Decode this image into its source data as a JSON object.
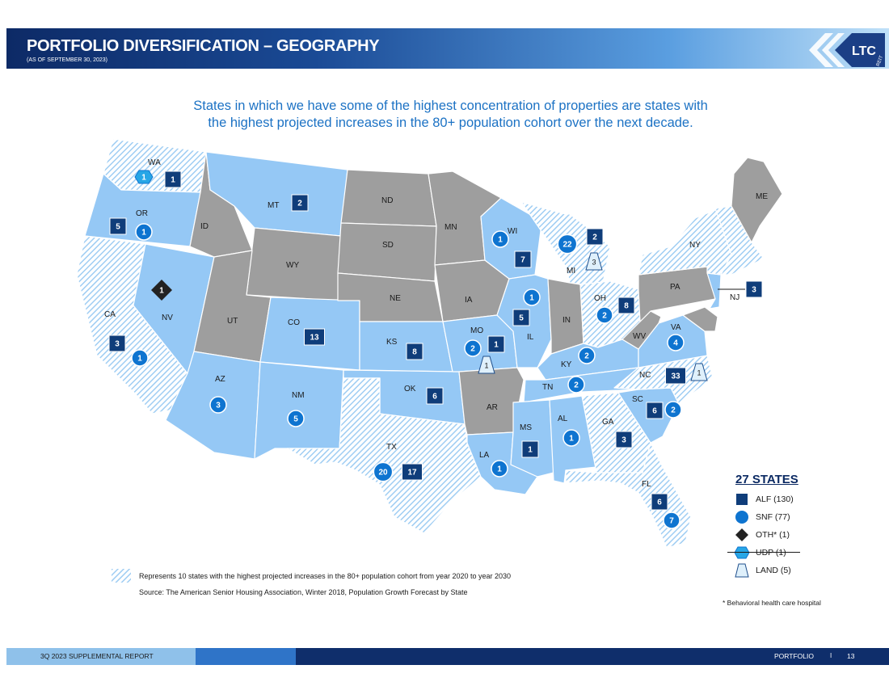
{
  "header": {
    "title": "PORTFOLIO DIVERSIFICATION – GEOGRAPHY",
    "subtitle": "(AS OF SEPTEMBER 30, 2023)",
    "logo_text": "LTC",
    "logo_sub": "REIT"
  },
  "headline": {
    "line1": "States in which we have some of the highest concentration of properties are states with",
    "line2": "the highest projected increases in the 80+ population cohort over the next decade."
  },
  "colors": {
    "gray_state": "#9e9e9e",
    "blue_state": "#95c8f5",
    "hatch": "#9fcdf3",
    "alf": "#0f3d7a",
    "snf": "#0e74d0",
    "oth": "#222222",
    "udp": "#27a6e6",
    "land": "#dff0fb"
  },
  "states": [
    {
      "code": "WA",
      "fill": "hatch"
    },
    {
      "code": "OR",
      "fill": "blue"
    },
    {
      "code": "CA",
      "fill": "hatch"
    },
    {
      "code": "NV",
      "fill": "blue"
    },
    {
      "code": "ID",
      "fill": "gray"
    },
    {
      "code": "MT",
      "fill": "blue"
    },
    {
      "code": "WY",
      "fill": "gray"
    },
    {
      "code": "UT",
      "fill": "gray"
    },
    {
      "code": "AZ",
      "fill": "blue"
    },
    {
      "code": "CO",
      "fill": "blue"
    },
    {
      "code": "NM",
      "fill": "blue"
    },
    {
      "code": "ND",
      "fill": "gray"
    },
    {
      "code": "SD",
      "fill": "gray"
    },
    {
      "code": "NE",
      "fill": "gray"
    },
    {
      "code": "KS",
      "fill": "blue"
    },
    {
      "code": "OK",
      "fill": "blue"
    },
    {
      "code": "TX",
      "fill": "hatch"
    },
    {
      "code": "MN",
      "fill": "gray"
    },
    {
      "code": "IA",
      "fill": "gray"
    },
    {
      "code": "MO",
      "fill": "blue"
    },
    {
      "code": "AR",
      "fill": "gray"
    },
    {
      "code": "LA",
      "fill": "blue"
    },
    {
      "code": "WI",
      "fill": "blue"
    },
    {
      "code": "IL",
      "fill": "blue"
    },
    {
      "code": "MI",
      "fill": "hatch"
    },
    {
      "code": "IN",
      "fill": "gray"
    },
    {
      "code": "OH",
      "fill": "hatch"
    },
    {
      "code": "KY",
      "fill": "blue"
    },
    {
      "code": "TN",
      "fill": "blue"
    },
    {
      "code": "MS",
      "fill": "blue"
    },
    {
      "code": "AL",
      "fill": "blue"
    },
    {
      "code": "GA",
      "fill": "hatch"
    },
    {
      "code": "FL",
      "fill": "hatch"
    },
    {
      "code": "SC",
      "fill": "blue"
    },
    {
      "code": "NC",
      "fill": "hatch"
    },
    {
      "code": "VA",
      "fill": "blue"
    },
    {
      "code": "WV",
      "fill": "gray"
    },
    {
      "code": "PA",
      "fill": "gray"
    },
    {
      "code": "NY",
      "fill": "hatch"
    },
    {
      "code": "NJ",
      "fill": "blue"
    },
    {
      "code": "ME",
      "fill": "gray"
    }
  ],
  "markers": [
    {
      "state": "WA",
      "type": "UDP",
      "value": "1"
    },
    {
      "state": "WA",
      "type": "ALF",
      "value": "1"
    },
    {
      "state": "OR",
      "type": "ALF",
      "value": "5"
    },
    {
      "state": "OR",
      "type": "SNF",
      "value": "1"
    },
    {
      "state": "MT",
      "type": "ALF",
      "value": "2"
    },
    {
      "state": "NV",
      "type": "OTH",
      "value": "1"
    },
    {
      "state": "CA",
      "type": "ALF",
      "value": "3"
    },
    {
      "state": "CA",
      "type": "SNF",
      "value": "1"
    },
    {
      "state": "CO",
      "type": "ALF",
      "value": "13"
    },
    {
      "state": "AZ",
      "type": "SNF",
      "value": "3"
    },
    {
      "state": "NM",
      "type": "SNF",
      "value": "5"
    },
    {
      "state": "KS",
      "type": "ALF",
      "value": "8"
    },
    {
      "state": "OK",
      "type": "ALF",
      "value": "6"
    },
    {
      "state": "TX",
      "type": "SNF",
      "value": "20"
    },
    {
      "state": "TX",
      "type": "ALF",
      "value": "17"
    },
    {
      "state": "MO",
      "type": "SNF",
      "value": "2"
    },
    {
      "state": "MO",
      "type": "ALF",
      "value": "1"
    },
    {
      "state": "MO",
      "type": "LAND",
      "value": "1"
    },
    {
      "state": "WI",
      "type": "SNF",
      "value": "1"
    },
    {
      "state": "WI",
      "type": "ALF",
      "value": "7"
    },
    {
      "state": "IL",
      "type": "SNF",
      "value": "1"
    },
    {
      "state": "IL",
      "type": "ALF",
      "value": "5"
    },
    {
      "state": "MI",
      "type": "SNF",
      "value": "22"
    },
    {
      "state": "MI",
      "type": "ALF",
      "value": "2"
    },
    {
      "state": "MI",
      "type": "LAND",
      "value": "3"
    },
    {
      "state": "OH",
      "type": "ALF",
      "value": "8"
    },
    {
      "state": "OH",
      "type": "SNF",
      "value": "2"
    },
    {
      "state": "KY",
      "type": "SNF",
      "value": "2"
    },
    {
      "state": "TN",
      "type": "SNF",
      "value": "2"
    },
    {
      "state": "MS",
      "type": "ALF",
      "value": "1"
    },
    {
      "state": "LA",
      "type": "SNF",
      "value": "1"
    },
    {
      "state": "AL",
      "type": "SNF",
      "value": "1"
    },
    {
      "state": "GA",
      "type": "ALF",
      "value": "3"
    },
    {
      "state": "SC",
      "type": "ALF",
      "value": "6"
    },
    {
      "state": "SC",
      "type": "SNF",
      "value": "2"
    },
    {
      "state": "NC",
      "type": "ALF",
      "value": "33"
    },
    {
      "state": "NC",
      "type": "LAND",
      "value": "1"
    },
    {
      "state": "VA",
      "type": "SNF",
      "value": "4"
    },
    {
      "state": "NJ",
      "type": "ALF",
      "value": "3"
    },
    {
      "state": "FL",
      "type": "ALF",
      "value": "6"
    },
    {
      "state": "FL",
      "type": "SNF",
      "value": "7"
    }
  ],
  "legend": {
    "title": "27 STATES",
    "items": [
      {
        "type": "ALF",
        "label": "ALF (130)"
      },
      {
        "type": "SNF",
        "label": "SNF (77)"
      },
      {
        "type": "OTH",
        "label": "OTH* (1)"
      },
      {
        "type": "UDP",
        "label": "UDP (1)"
      },
      {
        "type": "LAND",
        "label": "LAND (5)"
      }
    ],
    "note": "* Behavioral health care hospital"
  },
  "footnote": {
    "line1": "Represents 10 states with the highest projected increases in the 80+ population cohort from year 2020 to year 2030",
    "line2": "Source:  The American Senior Housing Association, Winter 2018, Population Growth Forecast by State"
  },
  "footer": {
    "left": "3Q 2023 SUPPLEMENTAL REPORT",
    "section": "PORTFOLIO",
    "separator": "I",
    "page": "13"
  }
}
